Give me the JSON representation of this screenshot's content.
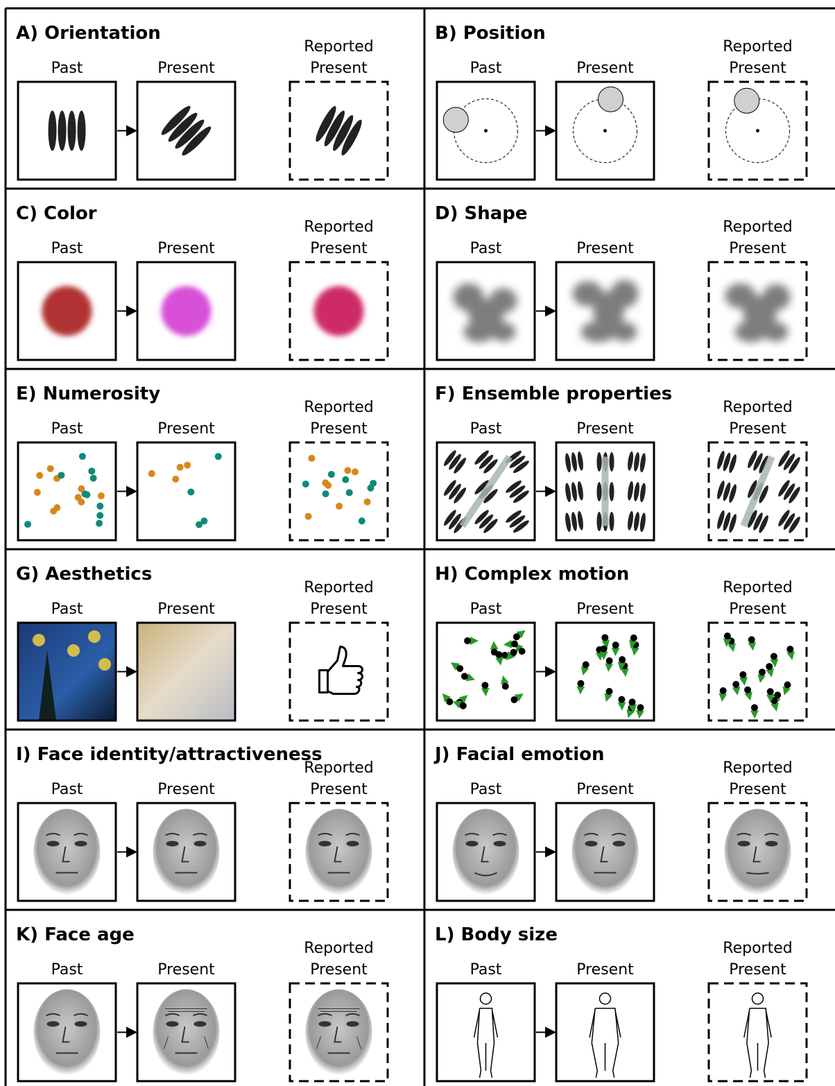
{
  "panels": [
    {
      "title": "A) Orientation",
      "labels": [
        "Past",
        "Present",
        "Reported",
        "Present"
      ]
    },
    {
      "title": "B) Position",
      "labels": [
        "Past",
        "Present",
        "Reported",
        "Present"
      ]
    },
    {
      "title": "C) Color",
      "labels": [
        "Past",
        "Present",
        "Reported",
        "Present"
      ]
    },
    {
      "title": "D) Shape",
      "labels": [
        "Past",
        "Present",
        "Reported",
        "Present"
      ]
    },
    {
      "title": "E) Numerosity",
      "labels": [
        "Past",
        "Present",
        "Reported",
        "Present"
      ]
    },
    {
      "title": "F) Ensemble properties",
      "labels": [
        "Past",
        "Present",
        "Reported",
        "Present"
      ]
    },
    {
      "title": "G) Aesthetics",
      "labels": [
        "Past",
        "Present",
        "Reported",
        "Present"
      ]
    },
    {
      "title": "H) Complex motion",
      "labels": [
        "Past",
        "Present",
        "Reported",
        "Present"
      ]
    },
    {
      "title": "I) Face identity/attractiveness",
      "labels": [
        "Past",
        "Present",
        "Reported",
        "Present"
      ]
    },
    {
      "title": "J) Facial emotion",
      "labels": [
        "Past",
        "Present",
        "Reported",
        "Present"
      ]
    },
    {
      "title": "K) Face age",
      "labels": [
        "Past",
        "Present",
        "Reported",
        "Present"
      ]
    },
    {
      "title": "L) Body size",
      "labels": [
        "Past",
        "Present",
        "Reported",
        "Present"
      ]
    }
  ]
}
